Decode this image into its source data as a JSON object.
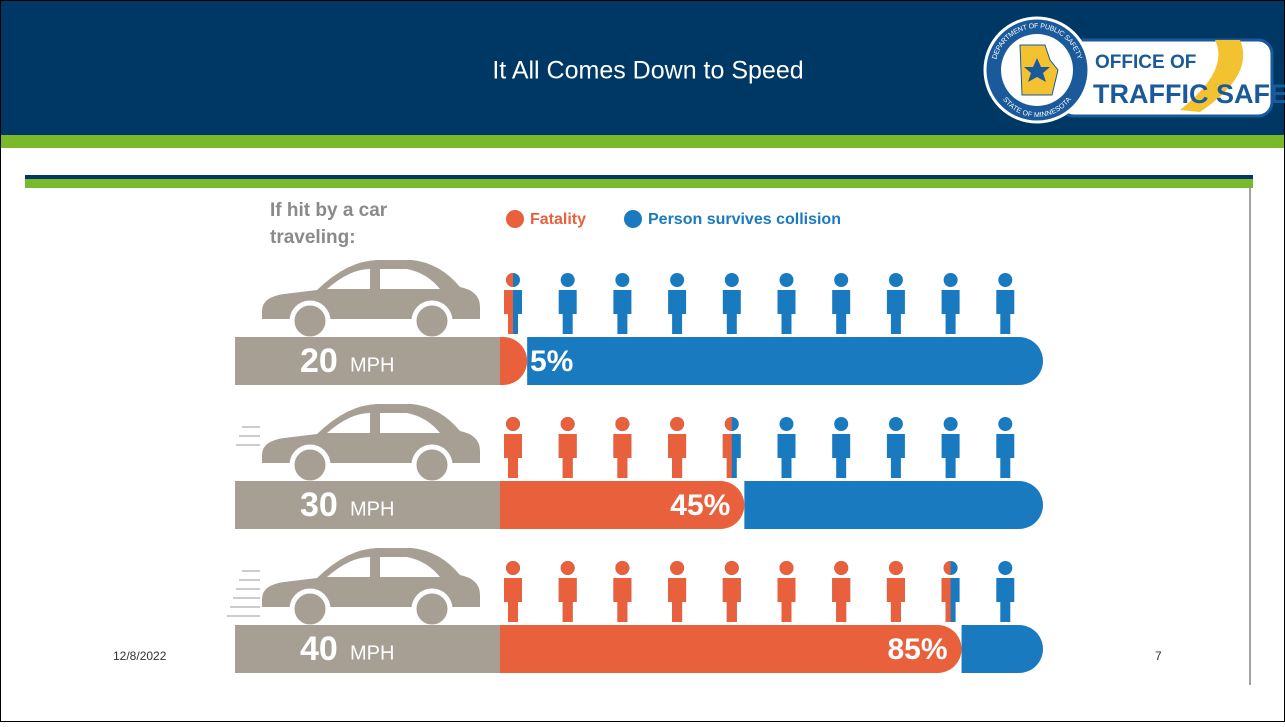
{
  "header": {
    "title": "It All Comes Down to Speed"
  },
  "logo": {
    "seal_top": "DEPARTMENT OF PUBLIC SAFETY",
    "seal_bottom": "STATE OF MINNESOTA",
    "line1": "OFFICE OF",
    "line2": "TRAFFIC SAFETY"
  },
  "chart_data": {
    "type": "bar",
    "subtitle": [
      "If hit by a car",
      "traveling:"
    ],
    "categories": [
      "20",
      "30",
      "40"
    ],
    "category_unit": "MPH",
    "series": [
      {
        "name": "Fatality",
        "color": "#e8603c",
        "values": [
          5,
          45,
          85
        ],
        "value_labels": [
          "5%",
          "45%",
          "85%"
        ]
      },
      {
        "name": "Person survives collision",
        "color": "#1a7ac0",
        "values": [
          95,
          55,
          15
        ]
      }
    ],
    "xlim": [
      0,
      100
    ],
    "icons_per_row": 10
  },
  "footer": {
    "date": "12/8/2022",
    "page": "7"
  }
}
